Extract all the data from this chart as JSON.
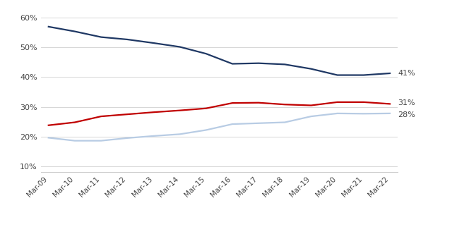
{
  "x_labels": [
    "Mar-09",
    "Mar-10",
    "Mar-11",
    "Mar-12",
    "Mar-13",
    "Mar-14",
    "Mar-15",
    "Mar-16",
    "Mar-17",
    "Mar-18",
    "Mar-19",
    "Mar-20",
    "Mar-21",
    "Mar-22"
  ],
  "turkcell": [
    0.57,
    0.554,
    0.535,
    0.527,
    0.515,
    0.502,
    0.479,
    0.445,
    0.447,
    0.443,
    0.428,
    0.407,
    0.407,
    0.413
  ],
  "vodafone": [
    0.238,
    0.248,
    0.268,
    0.275,
    0.282,
    0.288,
    0.295,
    0.313,
    0.314,
    0.308,
    0.305,
    0.316,
    0.316,
    0.31
  ],
  "turk_telekom": [
    0.196,
    0.186,
    0.186,
    0.195,
    0.202,
    0.208,
    0.222,
    0.242,
    0.245,
    0.248,
    0.268,
    0.278,
    0.277,
    0.278
  ],
  "turkcell_color": "#1f3864",
  "vodafone_color": "#c00000",
  "turk_telekom_color": "#b8cce4",
  "end_labels": {
    "turkcell": "41%",
    "vodafone": "31%",
    "turk_telekom": "28%"
  },
  "ylim": [
    0.08,
    0.635
  ],
  "yticks": [
    0.1,
    0.2,
    0.3,
    0.4,
    0.5,
    0.6
  ],
  "ytick_labels": [
    "10%",
    "20%",
    "30%",
    "40%",
    "50%",
    "60%"
  ],
  "background_color": "#ffffff",
  "line_width": 1.6
}
